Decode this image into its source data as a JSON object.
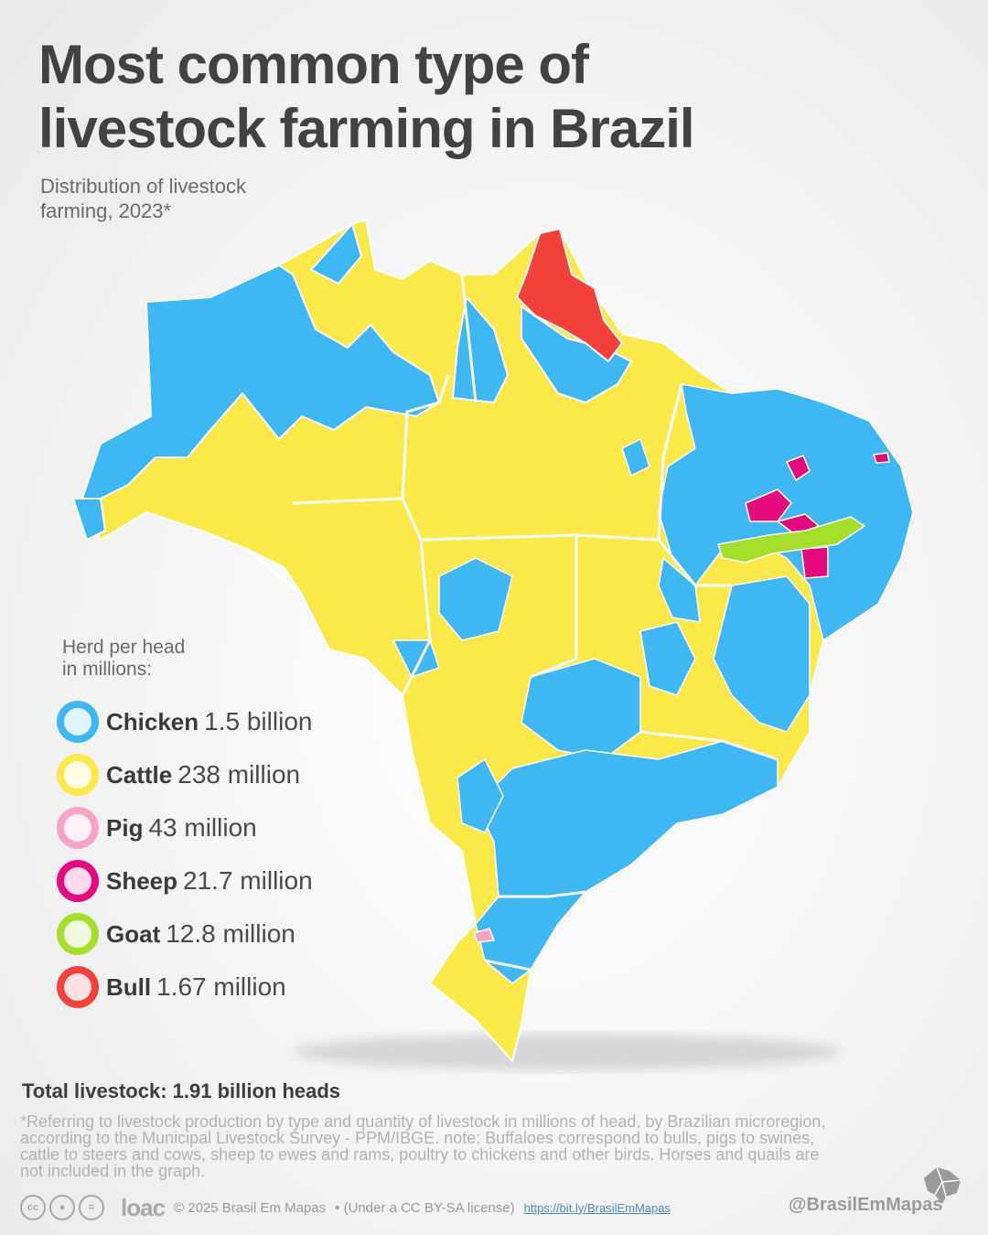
{
  "header": {
    "title_line1": "Most common type of",
    "title_line2": "livestock farming in Brazil",
    "subtitle_line1": "Distribution of livestock",
    "subtitle_line2": "farming, 2023*"
  },
  "colors": {
    "chicken": "#3fb7f3",
    "cattle": "#fbe94a",
    "pig": "#f6a3c7",
    "sheep": "#e6087f",
    "goat": "#a3df2b",
    "bull": "#f2403a"
  },
  "legend": {
    "title_line1": "Herd per head",
    "title_line2": "in millions:",
    "items": [
      {
        "icon": "chicken-icon",
        "name": "Chicken",
        "value": "1.5 billion",
        "color": "#3fb7f3"
      },
      {
        "icon": "cattle-icon",
        "name": "Cattle",
        "value": "238 million",
        "color": "#fbe94a"
      },
      {
        "icon": "pig-icon",
        "name": "Pig",
        "value": "43 million",
        "color": "#f6a3c7"
      },
      {
        "icon": "sheep-icon",
        "name": "Sheep",
        "value": "21.7 million",
        "color": "#e6087f"
      },
      {
        "icon": "goat-icon",
        "name": "Goat",
        "value": "12.8 million",
        "color": "#a3df2b"
      },
      {
        "icon": "bull-icon",
        "name": "Bull",
        "value": "1.67 million",
        "color": "#f2403a"
      }
    ]
  },
  "total": "Total livestock: 1.91 billion heads",
  "note": "*Referring to livestock production by type and quantity of livestock in millions of head, by Brazilian microregion, according to the Municipal Livestock Survey - PPM/IBGE. note: Buffaloes correspond to bulls, pigs to swines, cattle to steers and cows, sheep to ewes and rams, poultry to chickens and other birds. Horses and quails are not included in the graph.",
  "footer": {
    "loac": "loac",
    "copyright": "© 2025 Brasil Em Mapas",
    "license": "• (Under a CC BY-SA license)",
    "link": "https://bit.ly/BrasilEmMapas",
    "handle": "@BrasilEmMapas"
  }
}
